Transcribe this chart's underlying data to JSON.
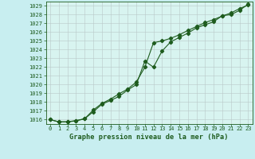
{
  "title": "Graphe pression niveau de la mer (hPa)",
  "bg_color": "#c8eef0",
  "plot_bg_color": "#d8f4f0",
  "line_color": "#1e5c1e",
  "x_labels": [
    "0",
    "1",
    "2",
    "3",
    "4",
    "5",
    "6",
    "7",
    "8",
    "9",
    "10",
    "11",
    "12",
    "13",
    "14",
    "15",
    "16",
    "17",
    "18",
    "19",
    "20",
    "21",
    "22",
    "23"
  ],
  "x_values": [
    0,
    1,
    2,
    3,
    4,
    5,
    6,
    7,
    8,
    9,
    10,
    11,
    12,
    13,
    14,
    15,
    16,
    17,
    18,
    19,
    20,
    21,
    22,
    23
  ],
  "line1_y": [
    1016.0,
    1015.75,
    1015.75,
    1015.85,
    1016.1,
    1016.9,
    1017.75,
    1018.2,
    1018.65,
    1019.4,
    1020.0,
    1022.7,
    1022.0,
    1023.85,
    1024.9,
    1025.4,
    1025.9,
    1026.5,
    1026.85,
    1027.2,
    1027.9,
    1028.0,
    1028.5,
    1029.2
  ],
  "line2_y": [
    1016.0,
    1015.75,
    1015.75,
    1015.9,
    1016.1,
    1017.1,
    1017.85,
    1018.35,
    1018.95,
    1019.5,
    1020.3,
    1022.0,
    1024.8,
    1025.0,
    1025.3,
    1025.7,
    1026.2,
    1026.65,
    1027.1,
    1027.45,
    1027.85,
    1028.2,
    1028.7,
    1029.1
  ],
  "ylim_min": 1015.5,
  "ylim_max": 1029.5,
  "yticks": [
    1016,
    1017,
    1018,
    1019,
    1020,
    1021,
    1022,
    1023,
    1024,
    1025,
    1026,
    1027,
    1028,
    1029
  ],
  "grid_color": "#b8c8c8",
  "marker": "D",
  "marker_size": 2.2,
  "linewidth": 0.8,
  "tick_fontsize": 5.0,
  "xlabel_fontsize": 6.2
}
